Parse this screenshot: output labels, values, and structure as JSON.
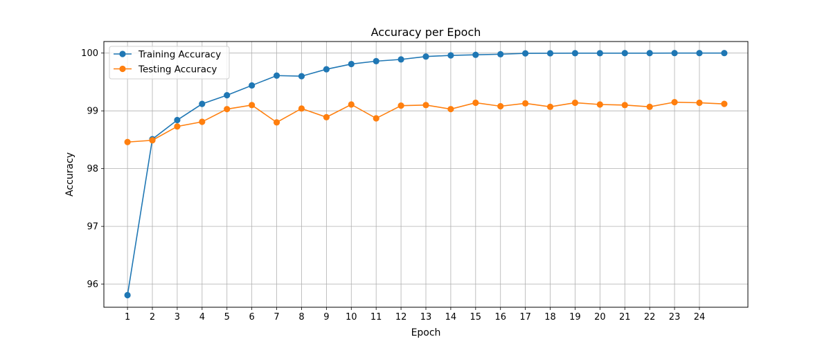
{
  "chart_data": {
    "type": "line",
    "title": "Accuracy per Epoch",
    "xlabel": "Epoch",
    "ylabel": "Accuracy",
    "x": [
      1,
      2,
      3,
      4,
      5,
      6,
      7,
      8,
      9,
      10,
      11,
      12,
      13,
      14,
      15,
      16,
      17,
      18,
      19,
      20,
      21,
      22,
      23,
      24,
      25
    ],
    "xticks": [
      1,
      2,
      3,
      4,
      5,
      6,
      7,
      8,
      9,
      10,
      11,
      12,
      13,
      14,
      15,
      16,
      17,
      18,
      19,
      20,
      21,
      22,
      23,
      24
    ],
    "xlim": [
      0.05,
      25.95
    ],
    "yticks": [
      96,
      97,
      98,
      99,
      100
    ],
    "ylim": [
      95.6,
      100.2
    ],
    "grid": true,
    "legend_position": "top-left",
    "series": [
      {
        "name": "Training Accuracy",
        "color": "#1f77b4",
        "values": [
          95.81,
          98.51,
          98.84,
          99.12,
          99.27,
          99.44,
          99.61,
          99.6,
          99.72,
          99.81,
          99.86,
          99.89,
          99.94,
          99.96,
          99.97,
          99.98,
          99.995,
          99.997,
          99.998,
          99.998,
          99.999,
          99.999,
          100.0,
          100.0,
          100.0
        ]
      },
      {
        "name": "Testing Accuracy",
        "color": "#ff7f0e",
        "values": [
          98.46,
          98.49,
          98.73,
          98.81,
          99.03,
          99.1,
          98.8,
          99.04,
          98.89,
          99.11,
          98.87,
          99.09,
          99.1,
          99.03,
          99.14,
          99.08,
          99.13,
          99.07,
          99.14,
          99.11,
          99.1,
          99.07,
          99.15,
          99.14,
          99.12
        ]
      }
    ]
  }
}
